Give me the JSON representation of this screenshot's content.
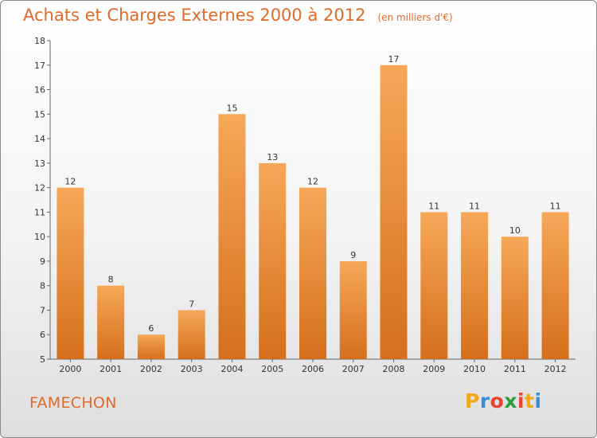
{
  "title": {
    "main": "Achats et Charges Externes 2000 à 2012",
    "unit": "(en milliers d'€)"
  },
  "commune": "FAMECHON",
  "logo": {
    "letters": [
      "P",
      "r",
      "o",
      "x",
      "i",
      "t",
      "i"
    ],
    "colors": [
      "#f2a818",
      "#3b8fd6",
      "#e8442a",
      "#2e9e3e",
      "#e8442a",
      "#f2a818",
      "#3b8fd6"
    ]
  },
  "colors": {
    "accent": "#e06a2a",
    "bar_top": "#f6a858",
    "bar_bottom": "#d56f1c"
  },
  "chart_data": {
    "type": "bar",
    "title": "Achats et Charges Externes 2000 à 2012",
    "categories": [
      "2000",
      "2001",
      "2002",
      "2003",
      "2004",
      "2005",
      "2006",
      "2007",
      "2008",
      "2009",
      "2010",
      "2011",
      "2012"
    ],
    "values": [
      12,
      8,
      6,
      7,
      15,
      13,
      12,
      9,
      17,
      11,
      11,
      10,
      11
    ],
    "ylim": [
      5,
      18
    ],
    "yticks": [
      5,
      6,
      7,
      8,
      9,
      10,
      11,
      12,
      13,
      14,
      15,
      16,
      17,
      18
    ],
    "grid": false,
    "xlabel": "",
    "ylabel": ""
  }
}
